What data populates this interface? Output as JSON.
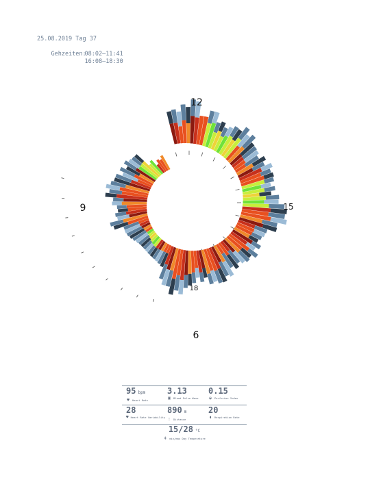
{
  "header": {
    "date_line": "25.08.2019 Tag 37",
    "gezeiten_label": "Gehzeiten:",
    "gezeiten_times": [
      "08:02–11:41",
      "16:08–18:30"
    ]
  },
  "dial": {
    "hour_labels": {
      "h12": "12",
      "h15": "15",
      "h9": "9",
      "h18": "18",
      "h6": "6"
    },
    "palette": {
      "dark_red": "#8b1a10",
      "red": "#c7301c",
      "red_orange": "#e8501f",
      "orange": "#f08a2a",
      "yellow": "#eed33a",
      "lime": "#c8ee3c",
      "green": "#6fe23a",
      "steel_dark": "#2d3e4e",
      "steel": "#5d7f9d",
      "steel_light": "#9bbbd6"
    }
  },
  "stats": {
    "row1": [
      {
        "value": "95",
        "unit": "bpm",
        "label": "Heart Rate",
        "icon": "heart-icon"
      },
      {
        "value": "3.13",
        "unit": "",
        "label": "Blood Pulse Wave",
        "icon": "pulse-wave-icon"
      },
      {
        "value": "0.15",
        "unit": "",
        "label": "Perfusion Index",
        "icon": "perfusion-icon"
      }
    ],
    "row2": [
      {
        "value": "28",
        "unit": "",
        "label": "Heart Rate Variability",
        "icon": "heart-variability-icon"
      },
      {
        "value": "890",
        "unit": "m",
        "label": "Distance",
        "icon": "footsteps-icon"
      },
      {
        "value": "20",
        "unit": "",
        "label": "Respiration Rate",
        "icon": "lungs-icon"
      }
    ],
    "temperature": {
      "value": "15/28",
      "unit": "°C",
      "label": "min/max Day Temperature",
      "icon": "thermometer-icon"
    }
  }
}
